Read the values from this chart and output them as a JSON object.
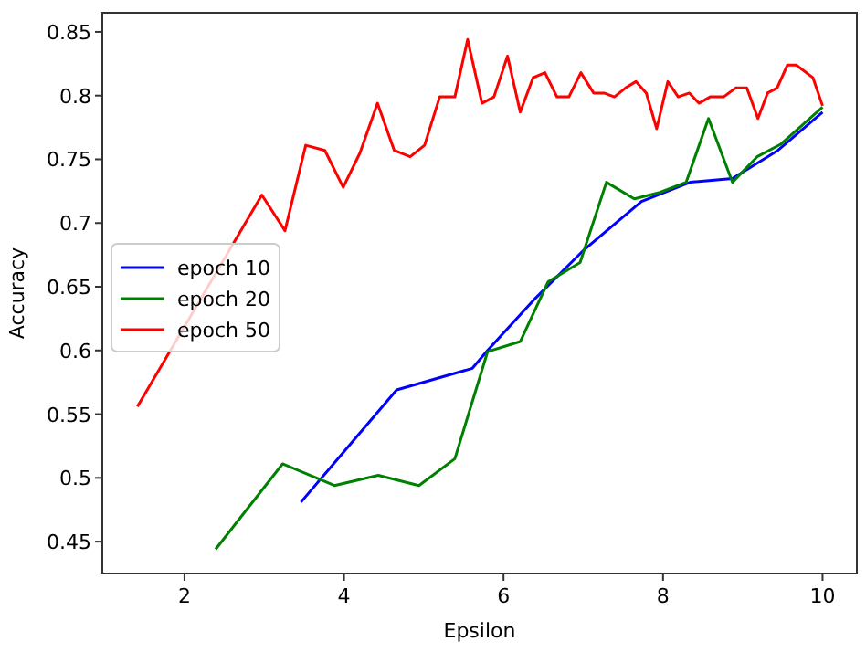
{
  "chart_data": {
    "type": "line",
    "xlabel": "Epsilon",
    "ylabel": "Accuracy",
    "xlim": [
      0.97,
      10.43
    ],
    "ylim": [
      0.425,
      0.865
    ],
    "xticks": [
      2,
      4,
      6,
      8,
      10
    ],
    "yticks": [
      0.45,
      0.5,
      0.55,
      0.6,
      0.65,
      0.7,
      0.75,
      0.8,
      0.85
    ],
    "grid": false,
    "legend": "left",
    "marker": "none",
    "line_style": "solid",
    "series": [
      {
        "name": "epoch 10",
        "color": "#0000ff",
        "x": [
          3.46,
          4.66,
          5.61,
          5.8,
          6.4,
          7.01,
          7.73,
          8.34,
          8.87,
          9.44,
          10.0
        ],
        "values": [
          0.481,
          0.569,
          0.586,
          0.6,
          0.641,
          0.679,
          0.717,
          0.732,
          0.735,
          0.757,
          0.787
        ]
      },
      {
        "name": "epoch 20",
        "color": "#008000",
        "x": [
          2.39,
          3.23,
          3.88,
          4.43,
          4.94,
          5.39,
          5.8,
          6.21,
          6.56,
          6.96,
          7.29,
          7.64,
          7.96,
          8.29,
          8.57,
          8.87,
          9.18,
          9.48,
          10.0
        ],
        "values": [
          0.444,
          0.511,
          0.494,
          0.502,
          0.494,
          0.515,
          0.599,
          0.607,
          0.654,
          0.669,
          0.732,
          0.719,
          0.724,
          0.732,
          0.782,
          0.732,
          0.752,
          0.762,
          0.791
        ]
      },
      {
        "name": "epoch 50",
        "color": "#ff0000",
        "x": [
          1.41,
          2.97,
          3.26,
          3.52,
          3.76,
          3.99,
          4.2,
          4.42,
          4.63,
          4.83,
          5.01,
          5.2,
          5.39,
          5.55,
          5.73,
          5.88,
          6.05,
          6.21,
          6.37,
          6.52,
          6.67,
          6.82,
          6.97,
          7.13,
          7.26,
          7.39,
          7.53,
          7.66,
          7.79,
          7.92,
          8.06,
          8.19,
          8.33,
          8.45,
          8.59,
          8.76,
          8.91,
          9.05,
          9.19,
          9.31,
          9.43,
          9.56,
          9.67,
          9.88,
          10.0
        ],
        "values": [
          0.556,
          0.722,
          0.694,
          0.761,
          0.757,
          0.728,
          0.755,
          0.794,
          0.757,
          0.752,
          0.761,
          0.799,
          0.799,
          0.844,
          0.794,
          0.799,
          0.831,
          0.787,
          0.814,
          0.818,
          0.799,
          0.799,
          0.818,
          0.802,
          0.802,
          0.799,
          0.806,
          0.811,
          0.802,
          0.774,
          0.811,
          0.799,
          0.802,
          0.794,
          0.799,
          0.799,
          0.806,
          0.806,
          0.782,
          0.802,
          0.806,
          0.824,
          0.824,
          0.814,
          0.792
        ]
      }
    ]
  }
}
